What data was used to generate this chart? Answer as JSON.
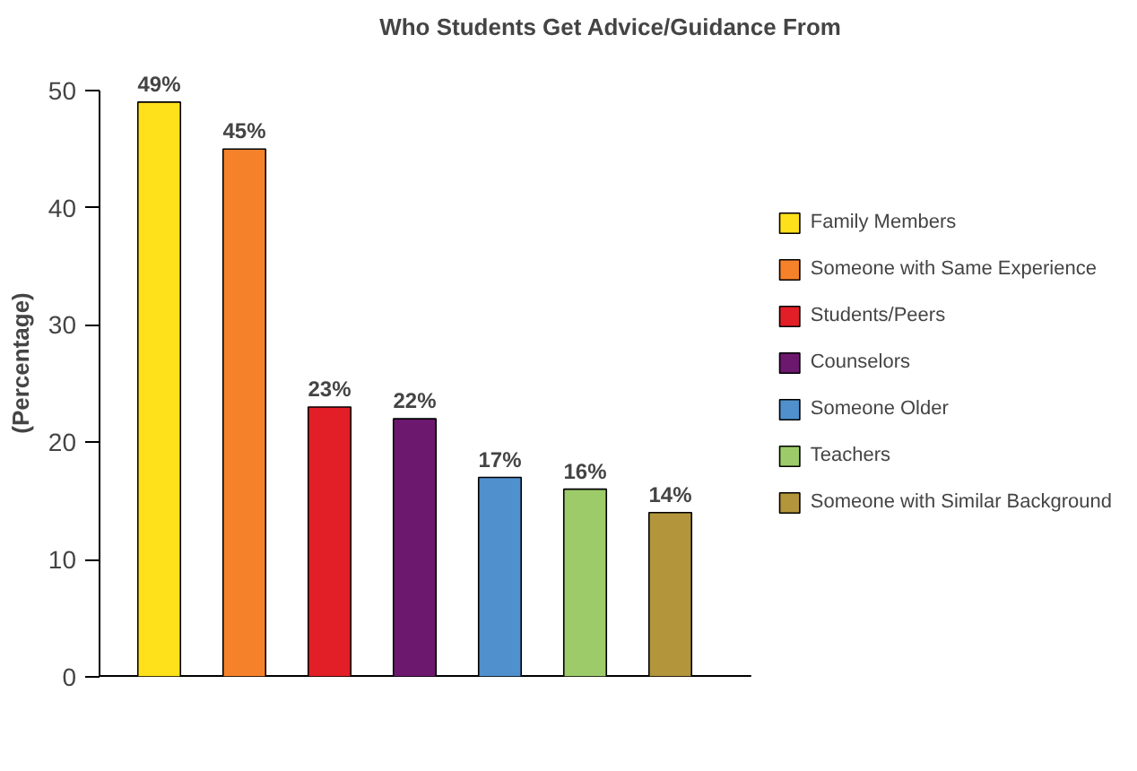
{
  "chart_data": {
    "type": "bar",
    "title": "Who Students Get Advice/Guidance From",
    "ylabel": "(Percentage)",
    "categories": [
      null
    ],
    "series": [
      {
        "name": "Family Members",
        "color": "#ffe11b",
        "values": [
          49
        ],
        "value_labels": [
          "49%"
        ]
      },
      {
        "name": "Someone with Same Experience",
        "color": "#f5822a",
        "values": [
          45
        ],
        "value_labels": [
          "45%"
        ]
      },
      {
        "name": "Students/Peers",
        "color": "#e21e26",
        "values": [
          23
        ],
        "value_labels": [
          "23%"
        ]
      },
      {
        "name": "Counselors",
        "color": "#6d186f",
        "values": [
          22
        ],
        "value_labels": [
          "22%"
        ]
      },
      {
        "name": "Someone Older",
        "color": "#4f90cd",
        "values": [
          17
        ],
        "value_labels": [
          "17%"
        ]
      },
      {
        "name": "Teachers",
        "color": "#9dcb69",
        "values": [
          16
        ],
        "value_labels": [
          "16%"
        ]
      },
      {
        "name": "Someone with Similar Background",
        "color": "#b3953c",
        "values": [
          14
        ],
        "value_labels": [
          "14%"
        ]
      }
    ],
    "ylim": [
      0,
      50
    ],
    "yticks": [
      0,
      10,
      20,
      30,
      40,
      50
    ],
    "grid": false,
    "legend": "right",
    "tick_labels": "y"
  }
}
